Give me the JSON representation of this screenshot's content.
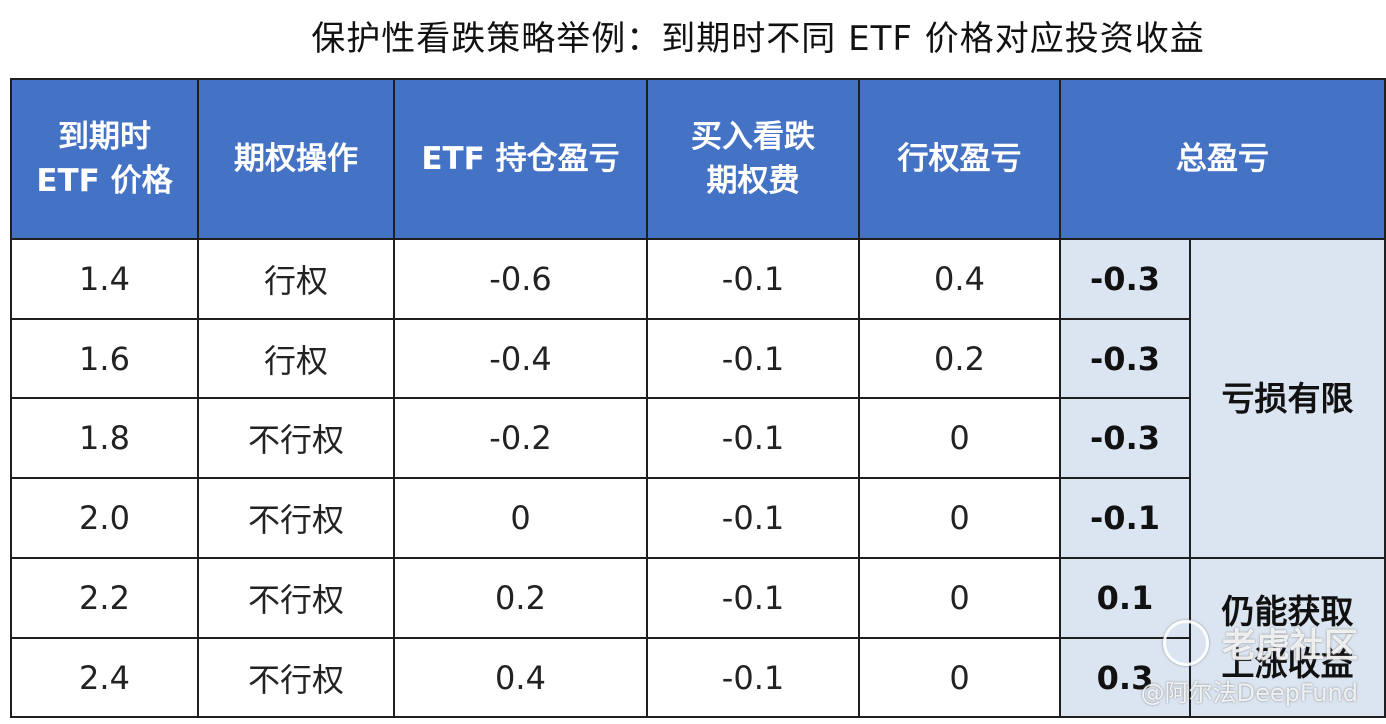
{
  "title": "保护性看跌策略举例：到期时不同 ETF 价格对应投资收益",
  "headers": [
    [
      "到期时",
      "ETF 价格"
    ],
    [
      "期权操作"
    ],
    [
      "ETF 持仓盈亏"
    ],
    [
      "买入看跌",
      "期权费"
    ],
    [
      "行权盈亏"
    ],
    [
      "总盈亏"
    ]
  ],
  "rows": [
    {
      "price": "1.4",
      "action": "行权",
      "etf_pnl": "-0.6",
      "premium": "-0.1",
      "exercise_pnl": "0.4",
      "total": "-0.3"
    },
    {
      "price": "1.6",
      "action": "行权",
      "etf_pnl": "-0.4",
      "premium": "-0.1",
      "exercise_pnl": "0.2",
      "total": "-0.3"
    },
    {
      "price": "1.8",
      "action": "不行权",
      "etf_pnl": "-0.2",
      "premium": "-0.1",
      "exercise_pnl": "0",
      "total": "-0.3"
    },
    {
      "price": "2.0",
      "action": "不行权",
      "etf_pnl": "0",
      "premium": "-0.1",
      "exercise_pnl": "0",
      "total": "-0.1"
    },
    {
      "price": "2.2",
      "action": "不行权",
      "etf_pnl": "0.2",
      "premium": "-0.1",
      "exercise_pnl": "0",
      "total": "0.1"
    },
    {
      "price": "2.4",
      "action": "不行权",
      "etf_pnl": "0.4",
      "premium": "-0.1",
      "exercise_pnl": "0",
      "total": "0.3"
    }
  ],
  "notes": {
    "loss_limited": [
      "亏损有限"
    ],
    "upside_kept": [
      "仍能获取",
      "上涨收益"
    ]
  },
  "watermark": {
    "brand": "老虎社区",
    "handle": "@阿尔法DeepFund"
  },
  "colors": {
    "header_bg": "#4472c4",
    "header_text": "#ffffff",
    "total_bg": "#dbe5f1",
    "border": "#1f1f1f"
  }
}
